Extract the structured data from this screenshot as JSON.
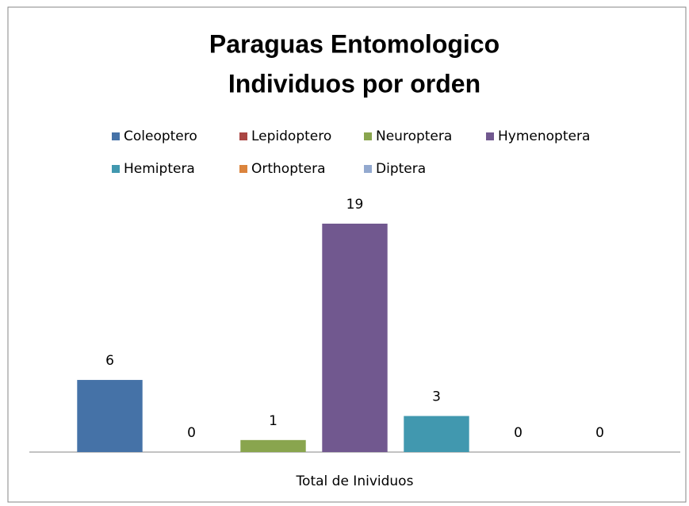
{
  "chart_data": {
    "type": "bar",
    "title": [
      "Paraguas Entomologico",
      "Individuos por orden"
    ],
    "categories": [
      "Total de Inividuos"
    ],
    "series": [
      {
        "name": "Coleoptero",
        "color": "#4572A7",
        "values": [
          6
        ]
      },
      {
        "name": "Lepidoptero",
        "color": "#AA4643",
        "values": [
          0
        ]
      },
      {
        "name": "Neuroptera",
        "color": "#89A54E",
        "values": [
          1
        ]
      },
      {
        "name": "Hymenoptera",
        "color": "#71588F",
        "values": [
          19
        ]
      },
      {
        "name": "Hemiptera",
        "color": "#4198AF",
        "values": [
          3
        ]
      },
      {
        "name": "Orthoptera",
        "color": "#DB843D",
        "values": [
          0
        ]
      },
      {
        "name": "Diptera",
        "color": "#93A9CF",
        "values": [
          0
        ]
      }
    ],
    "legend": "top"
  }
}
